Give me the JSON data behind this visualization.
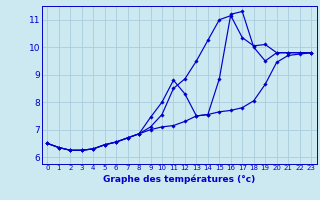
{
  "xlabel": "Graphe des températures (°c)",
  "background_color": "#cce8f0",
  "grid_color": "#aaccdd",
  "line_color": "#0000cc",
  "xlim": [
    -0.5,
    23.5
  ],
  "ylim": [
    5.75,
    11.5
  ],
  "xticks": [
    0,
    1,
    2,
    3,
    4,
    5,
    6,
    7,
    8,
    9,
    10,
    11,
    12,
    13,
    14,
    15,
    16,
    17,
    18,
    19,
    20,
    21,
    22,
    23
  ],
  "yticks": [
    6,
    7,
    8,
    9,
    10,
    11
  ],
  "series": [
    [
      6.5,
      6.35,
      6.25,
      6.25,
      6.3,
      6.45,
      6.55,
      6.7,
      6.85,
      7.1,
      7.55,
      8.5,
      8.85,
      9.5,
      10.25,
      11.0,
      11.15,
      10.35,
      10.05,
      10.1,
      9.8,
      9.8,
      9.8,
      9.8
    ],
    [
      6.5,
      6.35,
      6.25,
      6.25,
      6.3,
      6.45,
      6.55,
      6.7,
      6.85,
      7.45,
      8.0,
      8.8,
      8.3,
      7.5,
      7.55,
      8.85,
      11.2,
      11.3,
      10.0,
      9.5,
      9.8,
      9.8,
      9.8,
      9.8
    ],
    [
      6.5,
      6.35,
      6.25,
      6.25,
      6.3,
      6.45,
      6.55,
      6.7,
      6.85,
      7.0,
      7.1,
      7.15,
      7.3,
      7.5,
      7.55,
      7.65,
      7.7,
      7.8,
      8.05,
      8.65,
      9.45,
      9.7,
      9.75,
      9.8
    ]
  ]
}
